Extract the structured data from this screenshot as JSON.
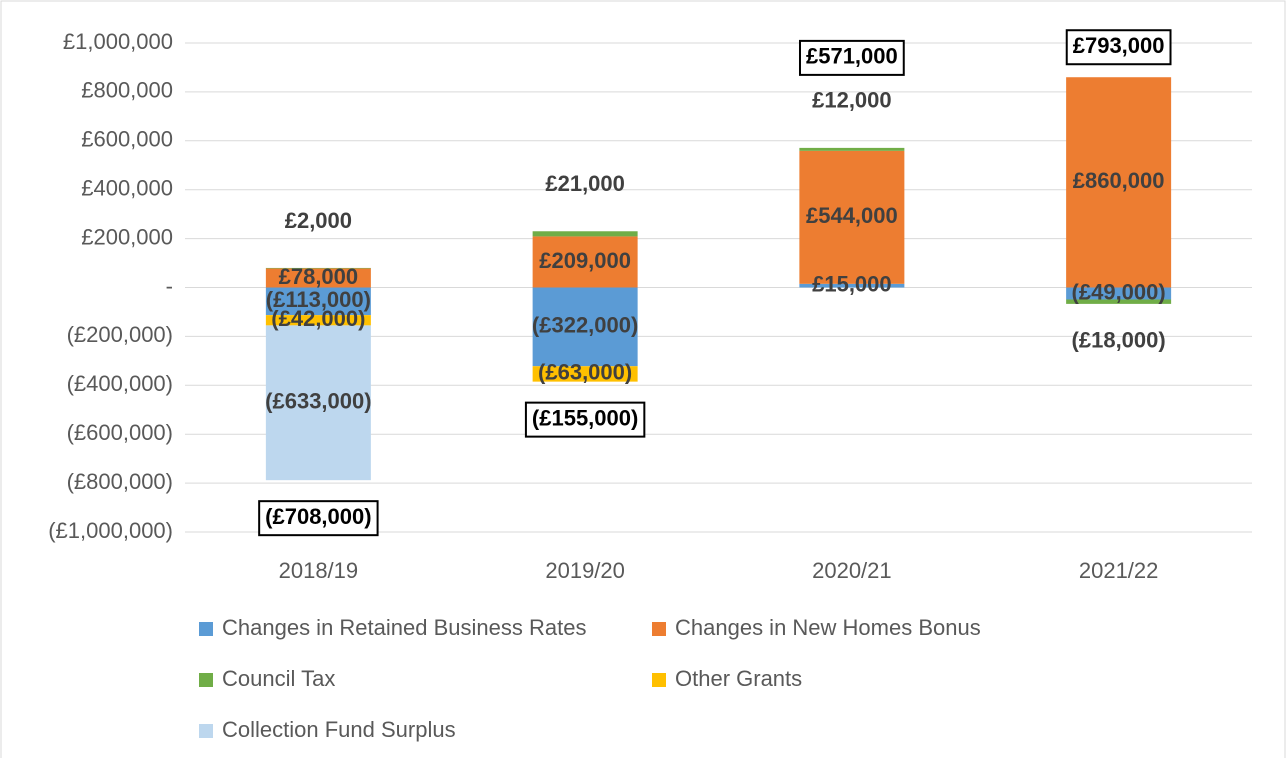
{
  "chart_data": {
    "type": "stacked_bar",
    "categories": [
      "2018/19",
      "2019/20",
      "2020/21",
      "2021/22"
    ],
    "ylim": [
      -1000000,
      1000000
    ],
    "yticks": [
      {
        "value": -1000000,
        "label": "(£1,000,000)"
      },
      {
        "value": -800000,
        "label": "(£800,000)"
      },
      {
        "value": -600000,
        "label": "(£600,000)"
      },
      {
        "value": -400000,
        "label": "(£400,000)"
      },
      {
        "value": -200000,
        "label": "(£200,000)"
      },
      {
        "value": 0,
        "label": "-"
      },
      {
        "value": 200000,
        "label": "£200,000"
      },
      {
        "value": 400000,
        "label": "£400,000"
      },
      {
        "value": 600000,
        "label": "£600,000"
      },
      {
        "value": 800000,
        "label": "£800,000"
      },
      {
        "value": 1000000,
        "label": "£1,000,000"
      }
    ],
    "grid": true,
    "legend": "bottom",
    "series": [
      {
        "name": "Changes in Retained Business Rates",
        "color": "#5b9bd5",
        "values": [
          -113000,
          -322000,
          15000,
          -49000
        ],
        "value_labels": [
          "(£113,000)",
          "(£322,000)",
          "£15,000",
          "(£49,000)"
        ]
      },
      {
        "name": "Changes in New Homes Bonus",
        "color": "#ed7d31",
        "values": [
          78000,
          209000,
          544000,
          860000
        ],
        "value_labels": [
          "£78,000",
          "£209,000",
          "£544,000",
          "£860,000"
        ]
      },
      {
        "name": "Council Tax",
        "color": "#70ad47",
        "values": [
          2000,
          21000,
          12000,
          -18000
        ],
        "value_labels": [
          "£2,000",
          "£21,000",
          "£12,000",
          "(£18,000)"
        ]
      },
      {
        "name": "Other Grants",
        "color": "#ffc000",
        "values": [
          -42000,
          -63000,
          null,
          null
        ],
        "value_labels": [
          "(£42,000)",
          "(£63,000)",
          null,
          null
        ]
      },
      {
        "name": "Collection Fund Surplus",
        "color": "#bdd7ee",
        "values": [
          -633000,
          null,
          null,
          null
        ],
        "value_labels": [
          "(£633,000)",
          null,
          null,
          null
        ]
      }
    ],
    "totals": {
      "values": [
        -708000,
        -155000,
        571000,
        793000
      ],
      "value_labels": [
        "(£708,000)",
        "(£155,000)",
        "£571,000",
        "£793,000"
      ]
    }
  }
}
